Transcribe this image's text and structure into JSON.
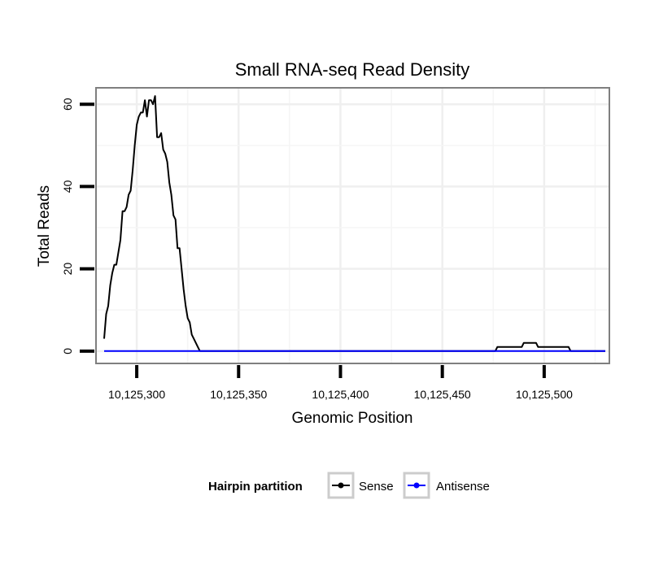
{
  "chart_data": {
    "type": "line",
    "title": "Small RNA-seq Read Density",
    "xlabel": "Genomic Position",
    "ylabel": "Total Reads",
    "xlim": [
      10125280,
      10125532
    ],
    "ylim": [
      -3,
      64
    ],
    "x_ticks": [
      10125300,
      10125350,
      10125400,
      10125450,
      10125500
    ],
    "x_tick_labels": [
      "10,125,300",
      "10,125,350",
      "10,125,400",
      "10,125,450",
      "10,125,500"
    ],
    "y_ticks": [
      0,
      20,
      40,
      60
    ],
    "y_tick_labels": [
      "0",
      "20",
      "40",
      "60"
    ],
    "grid": true,
    "legend": {
      "title": "Hairpin partition",
      "position": "bottom",
      "entries": [
        "Sense",
        "Antisense"
      ]
    },
    "series": [
      {
        "name": "Sense",
        "color": "#000000",
        "x": [
          10125284,
          10125285,
          10125286,
          10125287,
          10125288,
          10125289,
          10125290,
          10125291,
          10125292,
          10125293,
          10125294,
          10125295,
          10125296,
          10125297,
          10125298,
          10125299,
          10125300,
          10125301,
          10125302,
          10125303,
          10125304,
          10125305,
          10125306,
          10125307,
          10125308,
          10125309,
          10125310,
          10125311,
          10125312,
          10125313,
          10125314,
          10125315,
          10125316,
          10125317,
          10125318,
          10125319,
          10125320,
          10125321,
          10125322,
          10125323,
          10125324,
          10125325,
          10125326,
          10125327,
          10125328,
          10125329,
          10125330,
          10125331,
          10125332,
          10125333,
          10125334,
          10125400,
          10125476,
          10125477,
          10125478,
          10125479,
          10125480,
          10125481,
          10125482,
          10125483,
          10125484,
          10125485,
          10125486,
          10125487,
          10125488,
          10125489,
          10125490,
          10125491,
          10125492,
          10125493,
          10125494,
          10125495,
          10125496,
          10125497,
          10125498,
          10125499,
          10125500,
          10125501,
          10125502,
          10125503,
          10125504,
          10125505,
          10125506,
          10125507,
          10125508,
          10125509,
          10125510,
          10125511,
          10125512,
          10125513,
          10125530
        ],
        "values": [
          3,
          9,
          11,
          16,
          19,
          21,
          21,
          24,
          27,
          34,
          34,
          35,
          38,
          39,
          44,
          50,
          55,
          57,
          58,
          58,
          61,
          57,
          61,
          61,
          60,
          62,
          52,
          52,
          53,
          49,
          48,
          46,
          41,
          38,
          33,
          32,
          25,
          25,
          20,
          15,
          11,
          8,
          7,
          4,
          3,
          2,
          1,
          0,
          0,
          0,
          0,
          0,
          0,
          1,
          1,
          1,
          1,
          1,
          1,
          1,
          1,
          1,
          1,
          1,
          1,
          1,
          2,
          2,
          2,
          2,
          2,
          2,
          2,
          1,
          1,
          1,
          1,
          1,
          1,
          1,
          1,
          1,
          1,
          1,
          1,
          1,
          1,
          1,
          1,
          0,
          0
        ]
      },
      {
        "name": "Antisense",
        "color": "#0000ff",
        "x": [
          10125284,
          10125530
        ],
        "values": [
          0,
          0
        ]
      }
    ]
  }
}
